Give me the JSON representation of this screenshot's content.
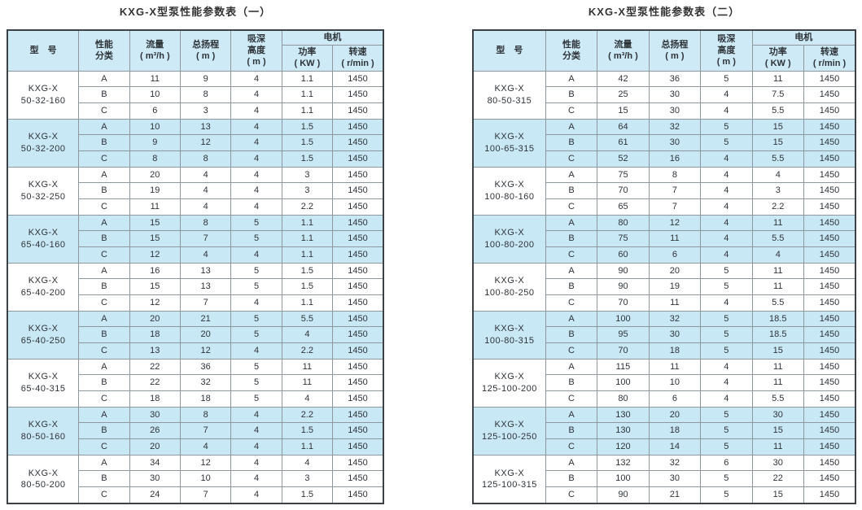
{
  "page": {
    "background": "#ffffff"
  },
  "colors": {
    "band": "#c9e8f6",
    "header_bg": "#cdeaf6",
    "border_outer": "#3b4144",
    "border_inner": "#8d979c",
    "text": "#2e3338"
  },
  "columns": {
    "model": "型　号",
    "category": "性能\n分类",
    "flow": "流量\n( m³/h )",
    "head": "总扬程\n( m )",
    "suction": "吸深\n高度\n( m )",
    "motor": "电机",
    "power": "功率\n( KW )",
    "speed": "转速\n( r/min )"
  },
  "tables": [
    {
      "title": "KXG-X型泵性能参数表（一）",
      "groups": [
        {
          "model": "KXG-X\n50-32-160",
          "shaded": false,
          "rows": [
            [
              "A",
              "11",
              "9",
              "4",
              "1.1",
              "1450"
            ],
            [
              "B",
              "10",
              "8",
              "4",
              "1.1",
              "1450"
            ],
            [
              "C",
              "6",
              "3",
              "4",
              "1.1",
              "1450"
            ]
          ]
        },
        {
          "model": "KXG-X\n50-32-200",
          "shaded": true,
          "rows": [
            [
              "A",
              "10",
              "13",
              "4",
              "1.5",
              "1450"
            ],
            [
              "B",
              "9",
              "12",
              "4",
              "1.5",
              "1450"
            ],
            [
              "C",
              "8",
              "8",
              "4",
              "1.5",
              "1450"
            ]
          ]
        },
        {
          "model": "KXG-X\n50-32-250",
          "shaded": false,
          "rows": [
            [
              "A",
              "20",
              "4",
              "4",
              "3",
              "1450"
            ],
            [
              "B",
              "19",
              "4",
              "4",
              "3",
              "1450"
            ],
            [
              "C",
              "11",
              "4",
              "4",
              "2.2",
              "1450"
            ]
          ]
        },
        {
          "model": "KXG-X\n65-40-160",
          "shaded": true,
          "rows": [
            [
              "A",
              "15",
              "8",
              "5",
              "1.1",
              "1450"
            ],
            [
              "B",
              "15",
              "7",
              "5",
              "1.1",
              "1450"
            ],
            [
              "C",
              "12",
              "4",
              "4",
              "1.1",
              "1450"
            ]
          ]
        },
        {
          "model": "KXG-X\n65-40-200",
          "shaded": false,
          "rows": [
            [
              "A",
              "16",
              "13",
              "5",
              "1.5",
              "1450"
            ],
            [
              "B",
              "15",
              "13",
              "5",
              "1.5",
              "1450"
            ],
            [
              "C",
              "12",
              "7",
              "4",
              "1.1",
              "1450"
            ]
          ]
        },
        {
          "model": "KXG-X\n65-40-250",
          "shaded": true,
          "rows": [
            [
              "A",
              "20",
              "21",
              "5",
              "5.5",
              "1450"
            ],
            [
              "B",
              "18",
              "20",
              "5",
              "4",
              "1450"
            ],
            [
              "C",
              "13",
              "12",
              "4",
              "2.2",
              "1450"
            ]
          ]
        },
        {
          "model": "KXG-X\n65-40-315",
          "shaded": false,
          "rows": [
            [
              "A",
              "22",
              "36",
              "5",
              "11",
              "1450"
            ],
            [
              "B",
              "22",
              "32",
              "5",
              "11",
              "1450"
            ],
            [
              "C",
              "18",
              "18",
              "5",
              "4",
              "1450"
            ]
          ]
        },
        {
          "model": "KXG-X\n80-50-160",
          "shaded": true,
          "rows": [
            [
              "A",
              "30",
              "8",
              "4",
              "2.2",
              "1450"
            ],
            [
              "B",
              "26",
              "7",
              "4",
              "1.5",
              "1450"
            ],
            [
              "C",
              "20",
              "4",
              "4",
              "1.1",
              "1450"
            ]
          ]
        },
        {
          "model": "KXG-X\n80-50-200",
          "shaded": false,
          "rows": [
            [
              "A",
              "34",
              "12",
              "4",
              "4",
              "1450"
            ],
            [
              "B",
              "30",
              "10",
              "4",
              "3",
              "1450"
            ],
            [
              "C",
              "24",
              "7",
              "4",
              "1.5",
              "1450"
            ]
          ]
        }
      ]
    },
    {
      "title": "KXG-X型泵性能参数表（二）",
      "groups": [
        {
          "model": "KXG-X\n80-50-315",
          "shaded": false,
          "rows": [
            [
              "A",
              "42",
              "36",
              "5",
              "11",
              "1450"
            ],
            [
              "B",
              "25",
              "30",
              "4",
              "7.5",
              "1450"
            ],
            [
              "C",
              "15",
              "30",
              "4",
              "5.5",
              "1450"
            ]
          ]
        },
        {
          "model": "KXG-X\n100-65-315",
          "shaded": true,
          "rows": [
            [
              "A",
              "64",
              "32",
              "5",
              "15",
              "1450"
            ],
            [
              "B",
              "61",
              "30",
              "5",
              "15",
              "1450"
            ],
            [
              "C",
              "52",
              "16",
              "4",
              "5.5",
              "1450"
            ]
          ]
        },
        {
          "model": "KXG-X\n100-80-160",
          "shaded": false,
          "rows": [
            [
              "A",
              "75",
              "8",
              "4",
              "4",
              "1450"
            ],
            [
              "B",
              "70",
              "7",
              "4",
              "3",
              "1450"
            ],
            [
              "C",
              "65",
              "7",
              "4",
              "2.2",
              "1450"
            ]
          ]
        },
        {
          "model": "KXG-X\n100-80-200",
          "shaded": true,
          "rows": [
            [
              "A",
              "80",
              "12",
              "4",
              "11",
              "1450"
            ],
            [
              "B",
              "75",
              "11",
              "4",
              "5.5",
              "1450"
            ],
            [
              "C",
              "60",
              "6",
              "4",
              "4",
              "1450"
            ]
          ]
        },
        {
          "model": "KXG-X\n100-80-250",
          "shaded": false,
          "rows": [
            [
              "A",
              "90",
              "20",
              "5",
              "11",
              "1450"
            ],
            [
              "B",
              "90",
              "19",
              "5",
              "11",
              "1450"
            ],
            [
              "C",
              "70",
              "11",
              "4",
              "5.5",
              "1450"
            ]
          ]
        },
        {
          "model": "KXG-X\n100-80-315",
          "shaded": true,
          "rows": [
            [
              "A",
              "100",
              "32",
              "5",
              "18.5",
              "1450"
            ],
            [
              "B",
              "95",
              "30",
              "5",
              "18.5",
              "1450"
            ],
            [
              "C",
              "70",
              "18",
              "5",
              "15",
              "1450"
            ]
          ]
        },
        {
          "model": "KXG-X\n125-100-200",
          "shaded": false,
          "rows": [
            [
              "A",
              "115",
              "11",
              "4",
              "11",
              "1450"
            ],
            [
              "B",
              "100",
              "10",
              "4",
              "11",
              "1450"
            ],
            [
              "C",
              "80",
              "6",
              "4",
              "5.5",
              "1450"
            ]
          ]
        },
        {
          "model": "KXG-X\n125-100-250",
          "shaded": true,
          "rows": [
            [
              "A",
              "130",
              "20",
              "5",
              "30",
              "1450"
            ],
            [
              "B",
              "130",
              "18",
              "5",
              "15",
              "1450"
            ],
            [
              "C",
              "120",
              "14",
              "5",
              "11",
              "1450"
            ]
          ]
        },
        {
          "model": "KXG-X\n125-100-315",
          "shaded": false,
          "rows": [
            [
              "A",
              "132",
              "32",
              "6",
              "30",
              "1450"
            ],
            [
              "B",
              "100",
              "30",
              "5",
              "22",
              "1450"
            ],
            [
              "C",
              "90",
              "21",
              "5",
              "15",
              "1450"
            ]
          ]
        }
      ]
    }
  ]
}
